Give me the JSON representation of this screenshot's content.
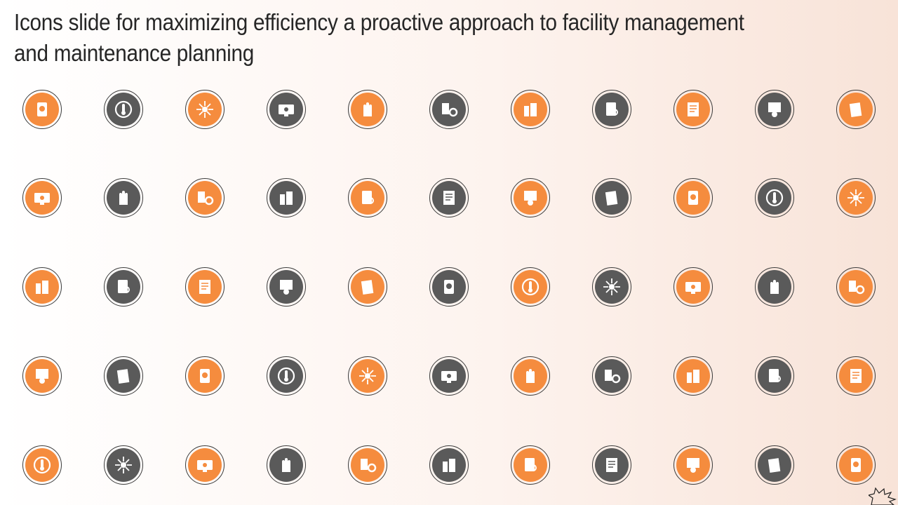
{
  "slide": {
    "title": "Icons slide for maximizing efficiency a proactive approach to facility management and maintenance planning"
  },
  "colors": {
    "orange": "#f58c3e",
    "gray": "#5a5a5a",
    "ring": "#3a3a3a"
  },
  "icon_rows": [
    [
      "orange",
      "gray",
      "orange",
      "gray",
      "orange",
      "gray",
      "orange",
      "gray",
      "orange",
      "gray",
      "orange"
    ],
    [
      "orange",
      "gray",
      "orange",
      "gray",
      "orange",
      "gray",
      "orange",
      "gray",
      "orange",
      "gray",
      "orange"
    ],
    [
      "orange",
      "gray",
      "orange",
      "gray",
      "orange",
      "gray",
      "orange",
      "gray",
      "orange",
      "gray",
      "orange"
    ],
    [
      "orange",
      "gray",
      "orange",
      "gray",
      "orange",
      "gray",
      "orange",
      "gray",
      "orange",
      "gray",
      "orange"
    ],
    [
      "orange",
      "gray",
      "orange",
      "gray",
      "orange",
      "gray",
      "orange",
      "gray",
      "orange",
      "gray",
      "orange"
    ]
  ],
  "icon_names": [
    [
      "boiler-icon",
      "thermometer-icon",
      "network-icon",
      "erp-monitor-icon",
      "cleaning-hand-icon",
      "machinery-gear-icon",
      "building-fire-icon",
      "clipboard-search-icon",
      "document-scroll-icon",
      "building-gear-icon",
      "shield-document-icon"
    ],
    [
      "light-bulb-icon",
      "energy-cycle-icon",
      "ship-wheel-icon",
      "monitor-inspection-icon",
      "toilet-icon",
      "factory-crane-icon",
      "gear-eye-icon",
      "web-search-icon",
      "blueprint-check-icon",
      "tools-chart-icon",
      "checklist-document-icon"
    ],
    [
      "hand-energy-icon",
      "clipboard-gear-icon",
      "idea-search-icon",
      "calculator-dollar-icon",
      "floor-plan-icon",
      "shield-bolt-icon",
      "gear-person-icon",
      "report-pen-icon",
      "settings-cycle-icon",
      "gear-refresh-icon",
      "report-search-icon"
    ],
    [
      "water-drop-icon",
      "web-api-icon",
      "eco-cycle-icon",
      "plant-shield-icon",
      "window-frame-icon",
      "document-search-icon",
      "recycle-bin-icon",
      "pest-control-icon",
      "presentation-team-icon",
      "building-masks-icon",
      "form-list-icon"
    ],
    [
      "gear-bolt-icon",
      "tools-cross-icon",
      "globe-stand-icon",
      "janitor-icon",
      "molecule-icon",
      "control-panel-icon",
      "growth-chart-icon",
      "team-idea-icon",
      "workflow-path-icon",
      "mind-gear-icon",
      "house-plus-icon"
    ]
  ]
}
